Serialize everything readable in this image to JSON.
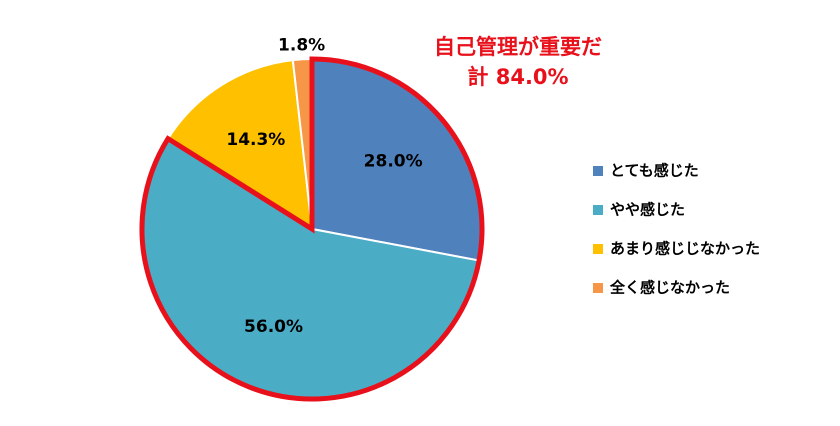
{
  "chart_data": {
    "type": "pie",
    "annotation": [
      "自己管理が重要だ",
      "計 84.0%"
    ],
    "annotation_color": "#e8111b",
    "categories": [
      "とても感じた",
      "やや感じた",
      "あまり感じじなかった",
      "全く感じなかった"
    ],
    "values": [
      28.0,
      56.0,
      14.3,
      1.8
    ],
    "value_labels": [
      "28.0%",
      "56.0%",
      "14.3%",
      "1.8%"
    ],
    "colors": [
      "#4f81bd",
      "#4bacc6",
      "#ffc000",
      "#f79646"
    ],
    "legend": "right"
  }
}
